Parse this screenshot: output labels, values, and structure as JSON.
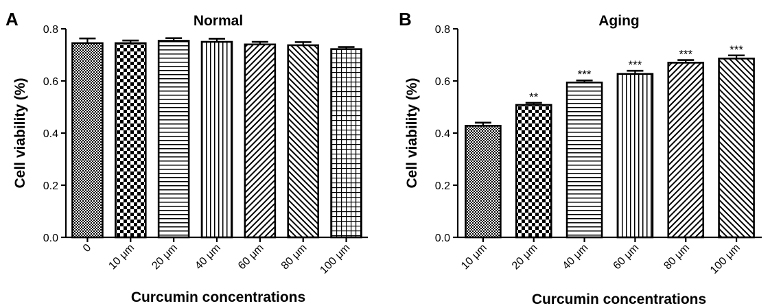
{
  "chart_data": [
    {
      "type": "bar",
      "panel": "A",
      "title": "Normal",
      "xlabel": "Curcumin concentrations",
      "ylabel": "Cell viability (%)",
      "ylim": [
        0,
        0.8
      ],
      "yticks": [
        "0.0",
        "0.2",
        "0.4",
        "0.6",
        "0.8"
      ],
      "categories": [
        "0",
        "10 μm",
        "20 μm",
        "40 μm",
        "60 μm",
        "80 μm",
        "100 μm"
      ],
      "values": [
        0.745,
        0.745,
        0.754,
        0.75,
        0.74,
        0.737,
        0.722
      ],
      "errors": [
        0.018,
        0.01,
        0.01,
        0.012,
        0.01,
        0.012,
        0.008
      ],
      "significance": [
        "",
        "",
        "",
        "",
        "",
        "",
        ""
      ],
      "patterns": [
        "dense-check",
        "check",
        "hlines",
        "vlines",
        "diag-up",
        "diag-down",
        "grid"
      ],
      "grid": false
    },
    {
      "type": "bar",
      "panel": "B",
      "title": "Aging",
      "xlabel": "Curcumin concentrations",
      "ylabel": "Cell viability (%)",
      "ylim": [
        0,
        0.8
      ],
      "yticks": [
        "0.0",
        "0.2",
        "0.4",
        "0.6",
        "0.8"
      ],
      "categories": [
        "10 μm",
        "20 μm",
        "40 μm",
        "60 μm",
        "80 μm",
        "100 μm"
      ],
      "values": [
        0.428,
        0.508,
        0.594,
        0.627,
        0.67,
        0.686
      ],
      "errors": [
        0.012,
        0.008,
        0.008,
        0.012,
        0.01,
        0.012
      ],
      "significance": [
        "",
        "**",
        "***",
        "***",
        "***",
        "***"
      ],
      "patterns": [
        "dense-check",
        "check",
        "hlines",
        "vlines",
        "diag-up",
        "diag-down"
      ],
      "grid": false
    }
  ]
}
